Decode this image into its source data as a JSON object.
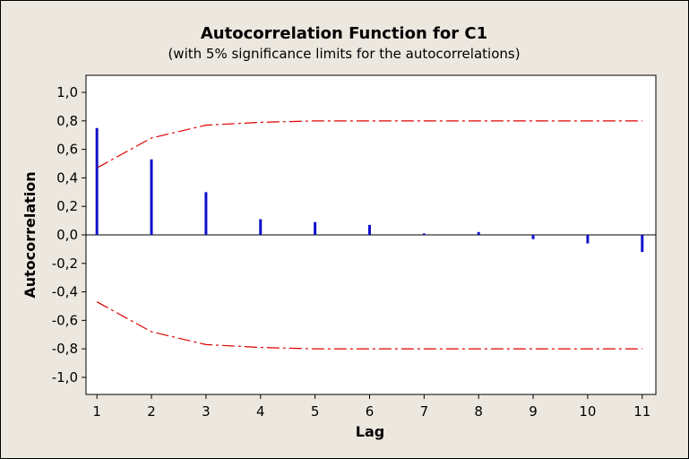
{
  "chart_data": {
    "type": "bar",
    "title": "Autocorrelation Function for C1",
    "subtitle": "(with 5% significance limits for the autocorrelations)",
    "xlabel": "Lag",
    "ylabel": "Autocorrelation",
    "x": [
      1,
      2,
      3,
      4,
      5,
      6,
      7,
      8,
      9,
      10,
      11
    ],
    "x_tick_labels": [
      "1",
      "2",
      "3",
      "4",
      "5",
      "6",
      "7",
      "8",
      "9",
      "10",
      "11"
    ],
    "values": [
      0.75,
      0.53,
      0.3,
      0.11,
      0.09,
      0.07,
      0.01,
      0.02,
      -0.03,
      -0.06,
      -0.12
    ],
    "significance_upper": [
      0.47,
      0.68,
      0.77,
      0.79,
      0.8,
      0.8,
      0.8,
      0.8,
      0.8,
      0.8,
      0.8
    ],
    "significance_lower": [
      -0.47,
      -0.68,
      -0.77,
      -0.79,
      -0.8,
      -0.8,
      -0.8,
      -0.8,
      -0.8,
      -0.8,
      -0.8
    ],
    "y_ticks": [
      1.0,
      0.8,
      0.6,
      0.4,
      0.2,
      0.0,
      -0.2,
      -0.4,
      -0.6,
      -0.8,
      -1.0
    ],
    "y_tick_labels": [
      "1,0",
      "0,8",
      "0,6",
      "0,4",
      "0,2",
      "0,0",
      "-0,2",
      "-0,4",
      "-0,6",
      "-0,8",
      "-1,0"
    ],
    "ylim": [
      -1.12,
      1.12
    ],
    "xlim": [
      0.8,
      11.25
    ],
    "grid": false,
    "colors": {
      "bars": "#1010cc",
      "limits": "#dd0000",
      "background": "#ede8df",
      "plot_area": "#ffffff"
    }
  }
}
